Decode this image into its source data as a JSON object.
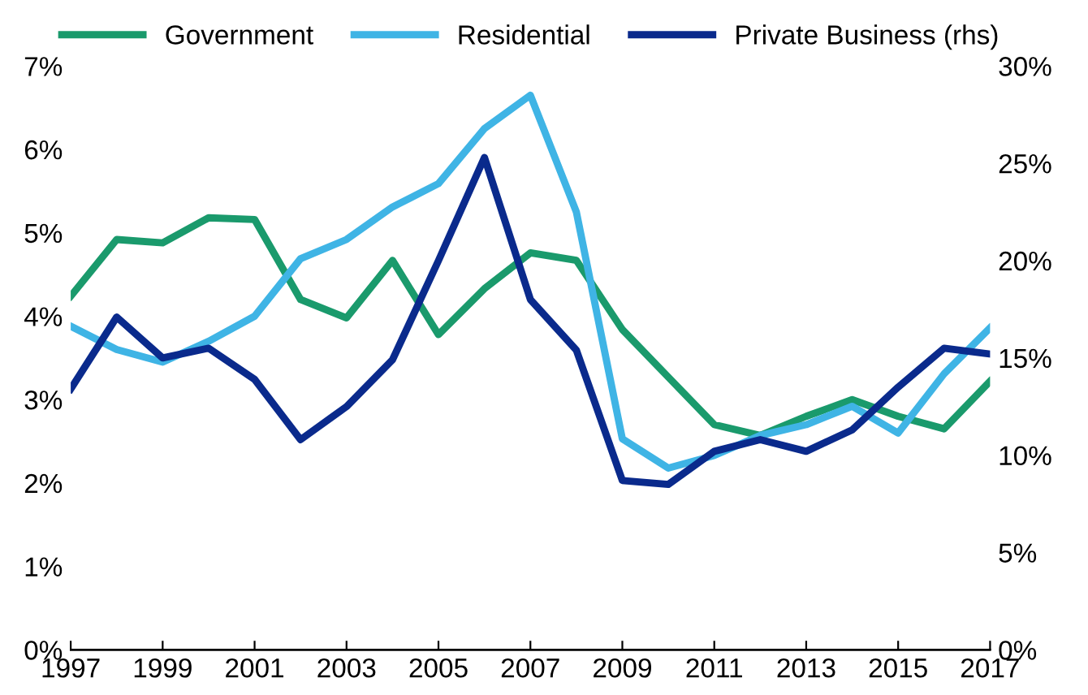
{
  "chart_data": {
    "type": "line",
    "legend": "top",
    "grid": false,
    "x": [
      1997,
      1998,
      1999,
      2000,
      2001,
      2002,
      2003,
      2004,
      2005,
      2006,
      2007,
      2008,
      2009,
      2010,
      2011,
      2012,
      2013,
      2014,
      2015,
      2016,
      2017
    ],
    "xlim": [
      1997,
      2017
    ],
    "xticks": [
      1997,
      1999,
      2001,
      2003,
      2005,
      2007,
      2009,
      2011,
      2013,
      2015,
      2017
    ],
    "ylim": [
      0,
      7
    ],
    "yticks": [
      {
        "value": 0,
        "label": "0%"
      },
      {
        "value": 1,
        "label": "1%"
      },
      {
        "value": 2,
        "label": "2%"
      },
      {
        "value": 3,
        "label": "3%"
      },
      {
        "value": 4,
        "label": "4%"
      },
      {
        "value": 5,
        "label": "5%"
      },
      {
        "value": 6,
        "label": "6%"
      },
      {
        "value": 7,
        "label": "7%"
      }
    ],
    "y2lim": [
      0,
      30
    ],
    "y2ticks": [
      {
        "value": 0,
        "label": "0%"
      },
      {
        "value": 5,
        "label": "5%"
      },
      {
        "value": 10,
        "label": "10%"
      },
      {
        "value": 15,
        "label": "15%"
      },
      {
        "value": 20,
        "label": "20%"
      },
      {
        "value": 25,
        "label": "25%"
      },
      {
        "value": 30,
        "label": "30%"
      }
    ],
    "series": [
      {
        "name": "Government",
        "color": "#1a9a6c",
        "values": [
          4.24,
          4.92,
          4.88,
          5.18,
          5.16,
          4.2,
          3.98,
          4.67,
          3.78,
          4.33,
          4.76,
          4.67,
          3.84,
          3.27,
          2.7,
          2.57,
          2.8,
          3.0,
          2.8,
          2.65,
          3.22
        ]
      },
      {
        "name": "Residential",
        "color": "#3fb4e5",
        "values": [
          3.88,
          3.6,
          3.45,
          3.7,
          4.0,
          4.69,
          4.92,
          5.31,
          5.59,
          6.25,
          6.65,
          5.25,
          2.53,
          2.18,
          2.33,
          2.57,
          2.7,
          2.92,
          2.6,
          3.31,
          3.86
        ]
      },
      {
        "name": "Private Business (rhs)",
        "color": "#0a2a8c",
        "axis": "y2",
        "values": [
          13.4,
          17.1,
          15.0,
          15.5,
          13.9,
          10.8,
          12.5,
          14.9,
          20.0,
          25.3,
          18.0,
          15.4,
          8.7,
          8.5,
          10.2,
          10.8,
          10.2,
          11.3,
          13.5,
          15.5,
          15.2
        ]
      }
    ]
  }
}
